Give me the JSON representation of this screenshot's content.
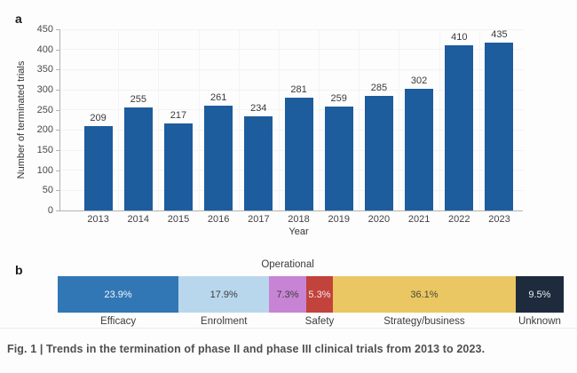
{
  "figure": {
    "caption": "Fig. 1 | Trends in the termination of phase II and phase III clinical trials from 2013 to 2023.",
    "panel_a_label": "a",
    "panel_b_label": "b"
  },
  "colors": {
    "bar_blue": "#1d5c9d",
    "axis_gray": "#b3b3b3",
    "grid_gray": "#f3f3f3",
    "caption_gray": "#4e4f52"
  },
  "chart_data": [
    {
      "type": "bar",
      "panel": "a",
      "categories": [
        "2013",
        "2014",
        "2015",
        "2016",
        "2017",
        "2018",
        "2019",
        "2020",
        "2021",
        "2022",
        "2023"
      ],
      "values": [
        209,
        255,
        217,
        261,
        234,
        281,
        259,
        285,
        302,
        410,
        435
      ],
      "title": "",
      "xlabel": "Year",
      "ylabel": "Number of terminated trials",
      "ylim": [
        0,
        450
      ],
      "ytick_step": 50,
      "yticks": [
        0,
        50,
        100,
        150,
        200,
        250,
        300,
        350,
        400,
        450
      ],
      "grid": "faint",
      "bar_color": "#1d5c9d",
      "value_labels": [
        "209",
        "255",
        "217",
        "261",
        "234",
        "281",
        "259",
        "285",
        "302",
        "410",
        "435"
      ]
    },
    {
      "type": "stacked-bar",
      "panel": "b",
      "orientation": "horizontal",
      "total": 100,
      "segments": [
        {
          "label": "Efficacy",
          "value": 23.9,
          "display": "23.9%",
          "color": "#3277b5",
          "text_color": "#f2f6fa",
          "label_pos": "below"
        },
        {
          "label": "Enrolment",
          "value": 17.9,
          "display": "17.9%",
          "color": "#b9d7ec",
          "text_color": "#3d3d3d",
          "label_pos": "below"
        },
        {
          "label": "Operational",
          "value": 7.3,
          "display": "7.3%",
          "color": "#c884d4",
          "text_color": "#3d3d3d",
          "label_pos": "above"
        },
        {
          "label": "Safety",
          "value": 5.3,
          "display": "5.3%",
          "color": "#c2423c",
          "text_color": "#f5e8e7",
          "label_pos": "below"
        },
        {
          "label": "Strategy/business",
          "value": 36.1,
          "display": "36.1%",
          "color": "#eac763",
          "text_color": "#4c4738",
          "label_pos": "below"
        },
        {
          "label": "Unknown",
          "value": 9.5,
          "display": "9.5%",
          "color": "#1d2b3d",
          "text_color": "#e9ecef",
          "label_pos": "below"
        }
      ]
    }
  ]
}
